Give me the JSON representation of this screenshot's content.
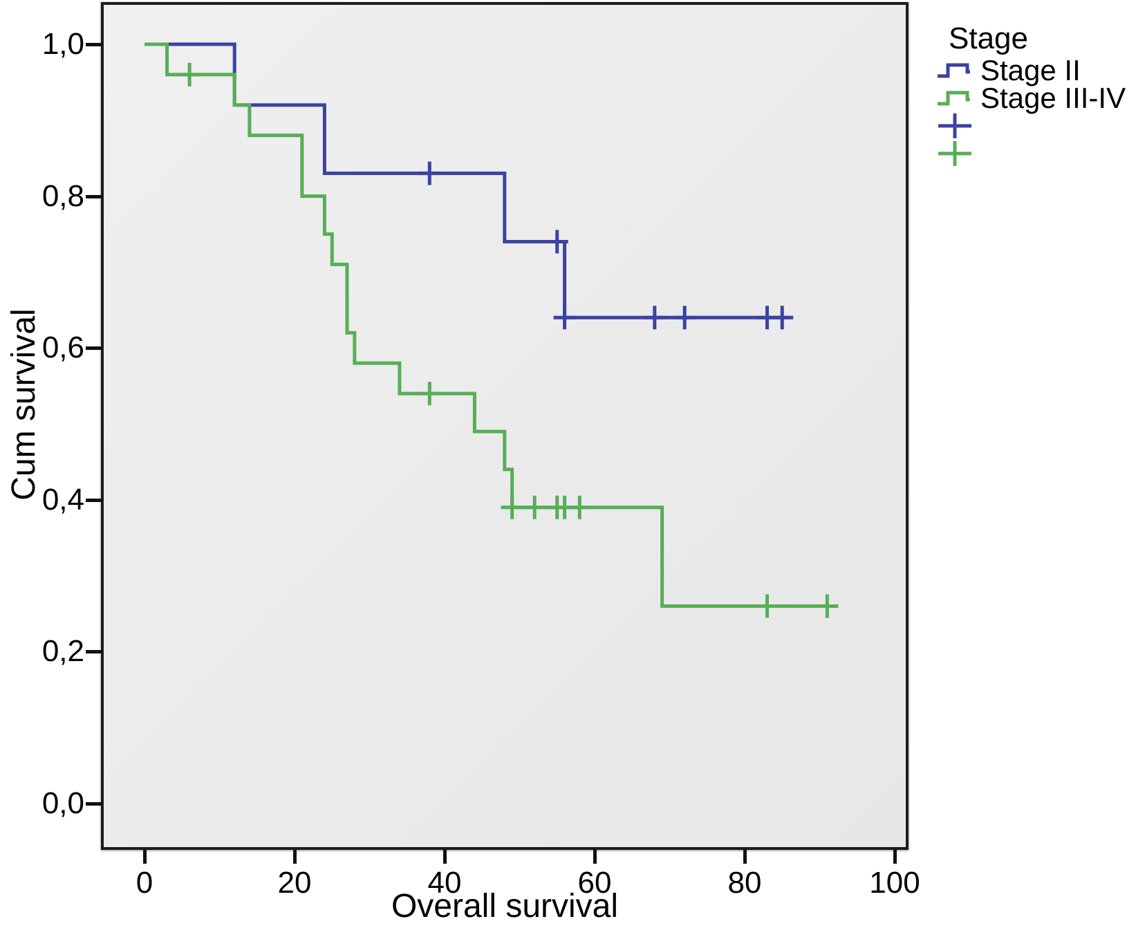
{
  "chart_data": {
    "type": "line",
    "subtype": "kaplan-meier-step",
    "title": "",
    "xlabel": "Overall survival",
    "ylabel": "Cum survival",
    "x_ticks": [
      {
        "label": "0",
        "value": 0
      },
      {
        "label": "20",
        "value": 20
      },
      {
        "label": "40",
        "value": 40
      },
      {
        "label": "60",
        "value": 60
      },
      {
        "label": "80",
        "value": 80
      },
      {
        "label": "100",
        "value": 100
      }
    ],
    "y_ticks": [
      {
        "label": "1,0",
        "value": 1.0
      },
      {
        "label": "0,8",
        "value": 0.8
      },
      {
        "label": "0,6",
        "value": 0.6
      },
      {
        "label": "0,4",
        "value": 0.4
      },
      {
        "label": "0,2",
        "value": 0.2
      },
      {
        "label": "0,0",
        "value": 0.0
      }
    ],
    "xlim": [
      -5.4,
      101.5
    ],
    "ylim": [
      -0.056,
      1.053
    ],
    "grid": false,
    "plot_background": "#ebebeb",
    "axis_color": "#1c1c1c",
    "legend_position": "outside-top-right",
    "legend": {
      "title": "Stage",
      "entries": [
        {
          "label": "Stage II",
          "marker": "step-line",
          "color": "#3b42a0"
        },
        {
          "label": "Stage III-IV",
          "marker": "step-line",
          "color": "#57ae57"
        },
        {
          "label": "",
          "marker": "plus",
          "color": "#3b42a0"
        },
        {
          "label": "",
          "marker": "plus",
          "color": "#57ae57"
        }
      ]
    },
    "series": [
      {
        "name": "Stage II",
        "color": "#3b42a0",
        "points": [
          [
            0,
            1.0
          ],
          [
            12,
            0.92
          ],
          [
            24,
            0.83
          ],
          [
            48,
            0.74
          ],
          [
            56,
            0.64
          ]
        ],
        "end_x": 86,
        "censored": [
          [
            38,
            0.83
          ],
          [
            55,
            0.74
          ],
          [
            56,
            0.64
          ],
          [
            68,
            0.64
          ],
          [
            72,
            0.64
          ],
          [
            83,
            0.64
          ],
          [
            85,
            0.64
          ]
        ]
      },
      {
        "name": "Stage III-IV",
        "color": "#57ae57",
        "points": [
          [
            0,
            1.0
          ],
          [
            3,
            0.96
          ],
          [
            12,
            0.92
          ],
          [
            14,
            0.88
          ],
          [
            21,
            0.8
          ],
          [
            24,
            0.75
          ],
          [
            25,
            0.71
          ],
          [
            27,
            0.62
          ],
          [
            28,
            0.58
          ],
          [
            34,
            0.54
          ],
          [
            44,
            0.49
          ],
          [
            48,
            0.44
          ],
          [
            49,
            0.39
          ],
          [
            69,
            0.26
          ]
        ],
        "end_x": 92,
        "censored": [
          [
            6,
            0.96
          ],
          [
            38,
            0.54
          ],
          [
            49,
            0.39
          ],
          [
            52,
            0.39
          ],
          [
            55,
            0.39
          ],
          [
            56,
            0.39
          ],
          [
            58,
            0.39
          ],
          [
            83,
            0.26
          ],
          [
            91,
            0.26
          ]
        ]
      }
    ]
  }
}
